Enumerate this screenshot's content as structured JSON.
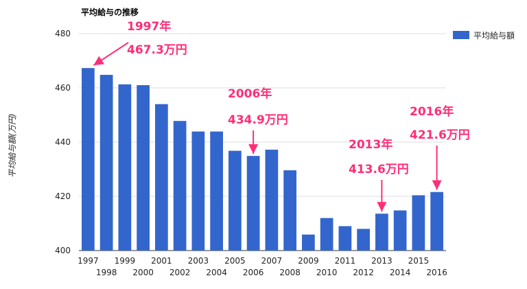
{
  "chart_data": {
    "type": "bar",
    "title": "平均給与の推移",
    "ylabel": "平均給与額(万円)",
    "ylim": [
      400,
      480
    ],
    "yticks": [
      400,
      420,
      440,
      460,
      480
    ],
    "grid": true,
    "legend_position": "right",
    "series": [
      {
        "name": "平均給与額",
        "color": "#3366cc",
        "values": [
          467.3,
          464.8,
          461.3,
          461.0,
          454.0,
          447.8,
          443.9,
          443.9,
          436.8,
          434.9,
          437.2,
          429.6,
          405.9,
          412.0,
          409.0,
          408.0,
          413.6,
          414.8,
          420.4,
          421.6
        ]
      }
    ],
    "categories": [
      "1997",
      "1998",
      "1999",
      "2000",
      "2001",
      "2002",
      "2003",
      "2004",
      "2005",
      "2006",
      "2007",
      "2008",
      "2009",
      "2010",
      "2011",
      "2012",
      "2013",
      "2014",
      "2015",
      "2016"
    ],
    "annotations": [
      {
        "category": "1997",
        "year": "1997年",
        "value": "467.3万円"
      },
      {
        "category": "2006",
        "year": "2006年",
        "value": "434.9万円"
      },
      {
        "category": "2013",
        "year": "2013年",
        "value": "413.6万円"
      },
      {
        "category": "2016",
        "year": "2016年",
        "value": "421.6万円"
      }
    ],
    "annotation_color": "#ff2d78"
  }
}
